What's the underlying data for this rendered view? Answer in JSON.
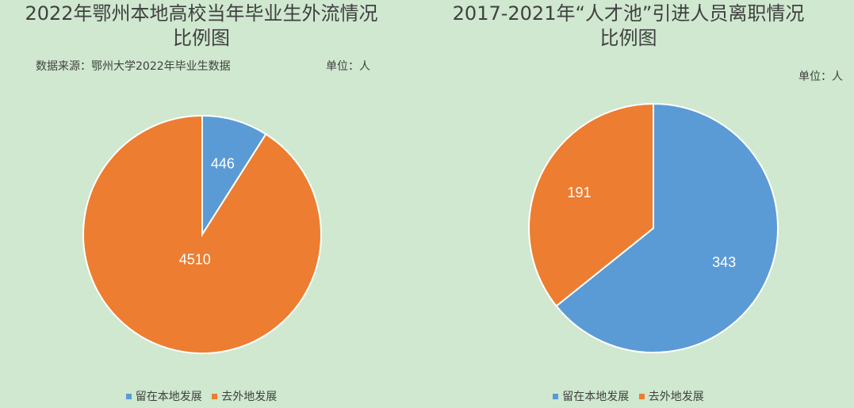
{
  "chart_data": [
    {
      "type": "pie",
      "title_line1": "2022年鄂州本地高校当年毕业生外流情况",
      "title_line2": "比例图",
      "source": "数据来源：鄂州大学2022年毕业生数据",
      "unit": "单位：人",
      "categories": [
        "留在本地发展",
        "去外地发展"
      ],
      "values": [
        446,
        4510
      ],
      "colors": [
        "#5b9bd5",
        "#ed7d31"
      ],
      "legend_position": "bottom"
    },
    {
      "type": "pie",
      "title_line1": "2017-2021年“人才池”引进人员离职情况",
      "title_line2": "比例图",
      "unit": "单位：人",
      "categories": [
        "留在本地发展",
        "去外地发展"
      ],
      "values": [
        343,
        191
      ],
      "colors": [
        "#5b9bd5",
        "#ed7d31"
      ],
      "legend_position": "bottom"
    }
  ]
}
